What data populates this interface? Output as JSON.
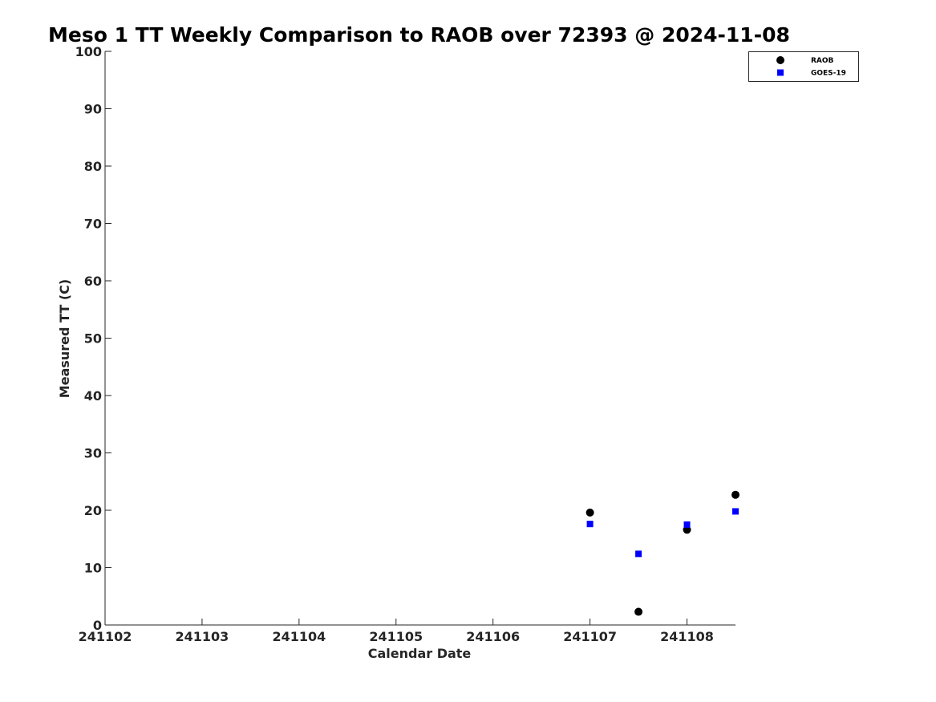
{
  "chart_data": {
    "type": "scatter",
    "title": "Meso 1 TT Weekly Comparison to RAOB over 72393 @ 2024-11-08",
    "xlabel": "Calendar Date",
    "ylabel": "Measured TT (C)",
    "xlim": [
      "2024-11-02",
      "2024-11-08 12:00"
    ],
    "ylim": [
      0,
      100
    ],
    "yticks": [
      0,
      10,
      20,
      30,
      40,
      50,
      60,
      70,
      80,
      90,
      100
    ],
    "xticks": [
      {
        "date": "2024-11-02",
        "label": "241102"
      },
      {
        "date": "2024-11-03",
        "label": "241103"
      },
      {
        "date": "2024-11-04",
        "label": "241104"
      },
      {
        "date": "2024-11-05",
        "label": "241105"
      },
      {
        "date": "2024-11-06",
        "label": "241106"
      },
      {
        "date": "2024-11-07",
        "label": "241107"
      },
      {
        "date": "2024-11-08",
        "label": "241108"
      }
    ],
    "grid": false,
    "legend": "top-right",
    "series": [
      {
        "name": "RAOB",
        "marker": "circle",
        "color": "#000000",
        "points": [
          {
            "x": "2024-11-07 00:00",
            "y": 19.6
          },
          {
            "x": "2024-11-07 12:00",
            "y": 2.3
          },
          {
            "x": "2024-11-08 00:00",
            "y": 16.6
          },
          {
            "x": "2024-11-08 12:00",
            "y": 22.7
          }
        ]
      },
      {
        "name": "GOES-19",
        "marker": "square",
        "color": "#0000ff",
        "points": [
          {
            "x": "2024-11-07 00:00",
            "y": 17.6
          },
          {
            "x": "2024-11-07 12:00",
            "y": 12.4
          },
          {
            "x": "2024-11-08 00:00",
            "y": 17.5
          },
          {
            "x": "2024-11-08 12:00",
            "y": 19.8
          }
        ]
      }
    ]
  }
}
